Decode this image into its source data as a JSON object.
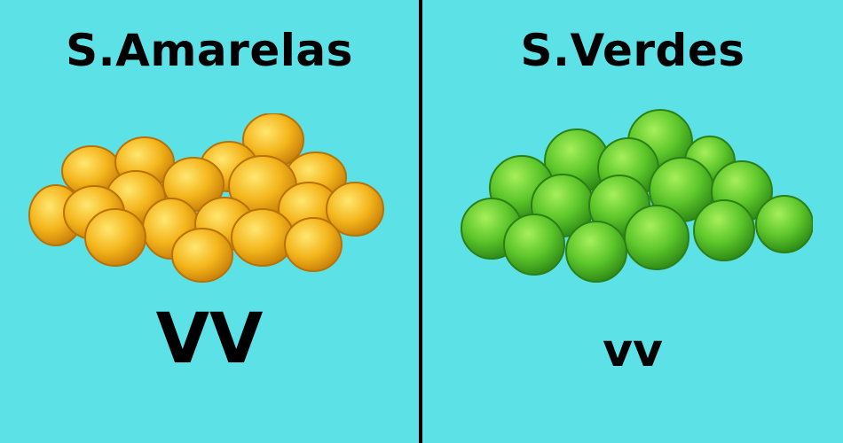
{
  "left": {
    "title": "S.Amarelas",
    "genotype": "VV",
    "seed_color": "#f2b21b"
  },
  "right": {
    "title": "S.Verdes",
    "genotype": "vv",
    "seed_color": "#5fc92a"
  },
  "background_color": "#5ce1e6"
}
